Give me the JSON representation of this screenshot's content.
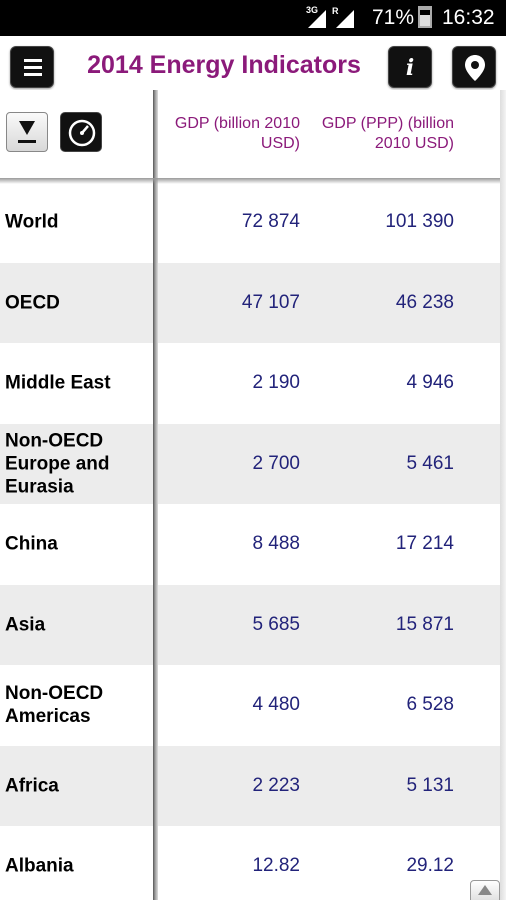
{
  "status": {
    "network": "3G",
    "roaming": "R",
    "battery": "71%",
    "battery_level": 0.71,
    "time": "16:32"
  },
  "header": {
    "title": "2014 Energy Indicators",
    "info_label": "i",
    "menu_icon": "menu-icon",
    "location_icon": "location-pin-icon"
  },
  "table": {
    "columns": [
      "GDP (billion 2010 USD)",
      "GDP (PPP) (billion 2010 USD)"
    ],
    "sort_icon": "sort-down-icon",
    "gauge_icon": "gauge-icon",
    "rows": [
      {
        "name": "World",
        "v1": "72 874",
        "v2": "101 390"
      },
      {
        "name": "OECD",
        "v1": "47 107",
        "v2": "46 238"
      },
      {
        "name": "Middle East",
        "v1": "2 190",
        "v2": "4 946"
      },
      {
        "name": "Non-OECD Europe and Eurasia",
        "v1": "2 700",
        "v2": "5 461"
      },
      {
        "name": "China",
        "v1": "8 488",
        "v2": "17 214"
      },
      {
        "name": "Asia",
        "v1": "5 685",
        "v2": "15 871"
      },
      {
        "name": "Non-OECD Americas",
        "v1": "4 480",
        "v2": "6 528"
      },
      {
        "name": "Africa",
        "v1": "2 223",
        "v2": "5 131"
      },
      {
        "name": "Albania",
        "v1": "12.82",
        "v2": "29.12"
      }
    ]
  },
  "colors": {
    "title": "#8b1a7a",
    "value": "#22237a",
    "alt_row": "#ececec"
  }
}
